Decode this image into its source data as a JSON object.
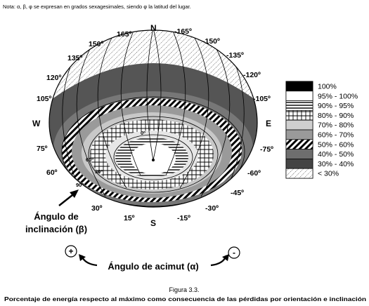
{
  "note": "Nota: α, β, φ se expresan en grados sexagesimales, siendo φ la latitud del lugar.",
  "cardinals": {
    "north": "N",
    "south": "S",
    "east": "E",
    "west": "W"
  },
  "azimuth_labels": {
    "top": [
      "165º",
      "-165º",
      "150º",
      "-150º",
      "135º",
      "-135º",
      "120º",
      "-120º"
    ],
    "side_left": [
      "105º",
      "75º",
      "60º"
    ],
    "side_right": [
      "-105º",
      "-75º",
      "-60º"
    ],
    "bottom": [
      "30º",
      "15º",
      "-15º",
      "-30º",
      "-45º"
    ]
  },
  "inclination_labels": [
    "90º",
    "60º",
    "30º",
    "0º"
  ],
  "legend": [
    {
      "label": "100%",
      "pattern": "solid-black"
    },
    {
      "label": "95% - 100%",
      "pattern": "white"
    },
    {
      "label": "90% - 95%",
      "pattern": "horizontal-lines"
    },
    {
      "label": "80% - 90%",
      "pattern": "grid"
    },
    {
      "label": "70% - 80%",
      "pattern": "light-gray"
    },
    {
      "label": "60% - 70%",
      "pattern": "medium-gray"
    },
    {
      "label": "50% - 60%",
      "pattern": "diagonal-hatch"
    },
    {
      "label": "40% - 50%",
      "pattern": "dark-gray"
    },
    {
      "label": "30% - 40%",
      "pattern": "darker-gray"
    },
    {
      "label": "< 30%",
      "pattern": "dotted-hatch"
    }
  ],
  "annotations": {
    "inclination_line1": "Ángulo de",
    "inclination_line2": "inclinación (β)",
    "azimuth": "Ángulo de acimut (α)",
    "plus": "+",
    "minus": "-"
  },
  "caption": {
    "title": "Figura 3.3.",
    "text": "Porcentaje de energía respecto al máximo como consecuencia de las pérdidas por orientación e inclinación"
  }
}
